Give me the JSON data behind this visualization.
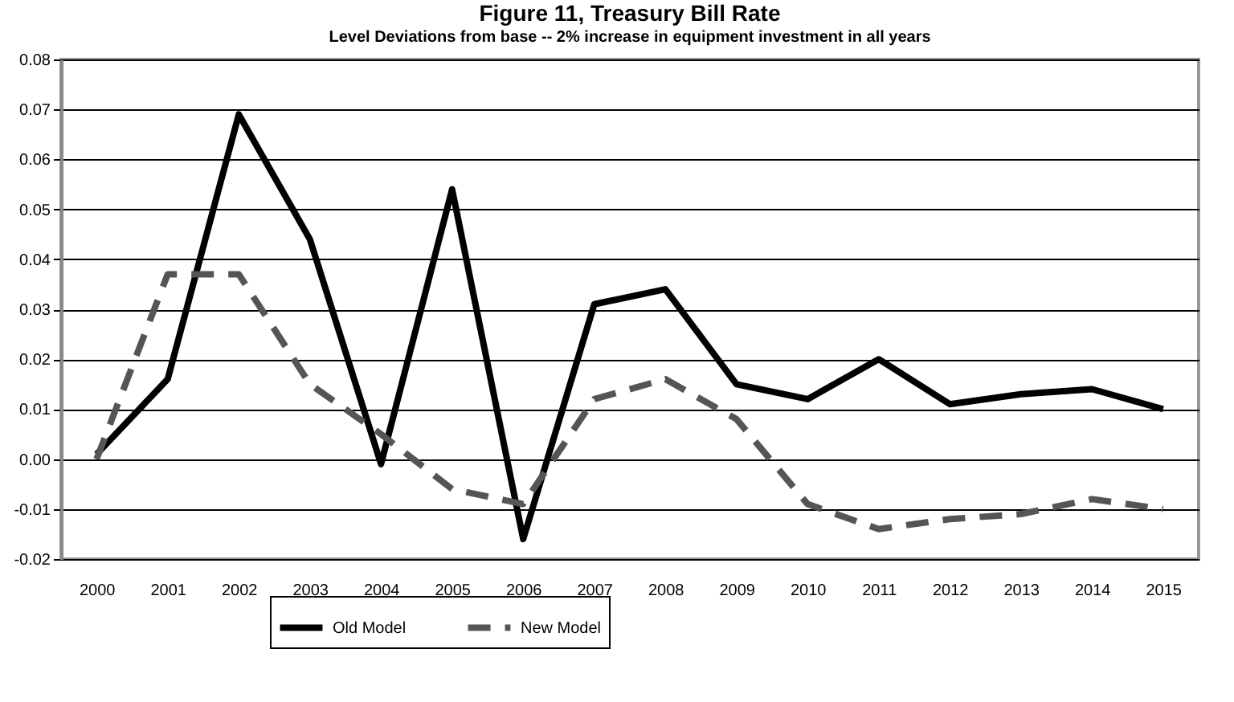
{
  "chart_data": {
    "type": "line",
    "title": "Figure 11, Treasury Bill Rate",
    "subtitle": "Level Deviations from base -- 2% increase in equipment investment in all years",
    "categories": [
      "2000",
      "2001",
      "2002",
      "2003",
      "2004",
      "2005",
      "2006",
      "2007",
      "2008",
      "2009",
      "2010",
      "2011",
      "2012",
      "2013",
      "2014",
      "2015"
    ],
    "series": [
      {
        "name": "Old Model",
        "color": "#000000",
        "line_style": "solid",
        "values": [
          0.001,
          0.016,
          0.069,
          0.044,
          -0.001,
          0.054,
          -0.016,
          0.031,
          0.034,
          0.015,
          0.012,
          0.02,
          0.011,
          0.013,
          0.014,
          0.01
        ]
      },
      {
        "name": "New Model",
        "color": "#555555",
        "line_style": "dashed",
        "values": [
          0.0,
          0.037,
          0.037,
          0.015,
          0.005,
          -0.006,
          -0.009,
          0.012,
          0.016,
          0.008,
          -0.009,
          -0.014,
          -0.012,
          -0.011,
          -0.008,
          -0.01
        ]
      }
    ],
    "ylim": [
      -0.02,
      0.08
    ],
    "yticks": [
      {
        "value": -0.02,
        "label": "-0.02"
      },
      {
        "value": -0.01,
        "label": "-0.01"
      },
      {
        "value": 0,
        "label": "0.00"
      },
      {
        "value": 0.01,
        "label": "0.01"
      },
      {
        "value": 0.02,
        "label": "0.02"
      },
      {
        "value": 0.03,
        "label": "0.03"
      },
      {
        "value": 0.04,
        "label": "0.04"
      },
      {
        "value": 0.05,
        "label": "0.05"
      },
      {
        "value": 0.06,
        "label": "0.06"
      },
      {
        "value": 0.07,
        "label": "0.07"
      },
      {
        "value": 0.08,
        "label": "0.08"
      }
    ],
    "grid": "y",
    "legend": "bottom",
    "marker": "none"
  }
}
